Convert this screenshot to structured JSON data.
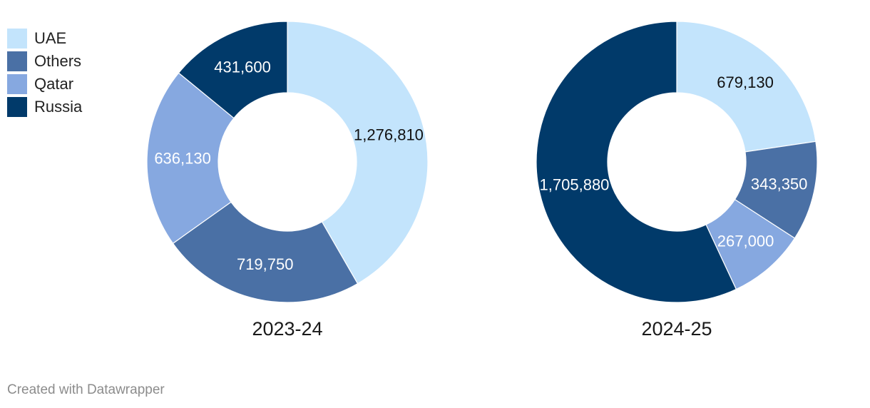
{
  "chart_data": [
    {
      "type": "pie",
      "title": "2023-24",
      "categories": [
        "UAE",
        "Others",
        "Qatar",
        "Russia"
      ],
      "values": [
        1276810,
        719750,
        636130,
        431600
      ],
      "data_labels": [
        "1,276,810",
        "719,750",
        "636,130",
        "431,600"
      ]
    },
    {
      "type": "pie",
      "title": "2024-25",
      "categories": [
        "UAE",
        "Others",
        "Qatar",
        "Russia"
      ],
      "values": [
        679130,
        343350,
        267000,
        1705880
      ],
      "data_labels": [
        "679,130",
        "343,350",
        "267,000",
        "1,705,880"
      ]
    }
  ],
  "legend": [
    {
      "label": "UAE",
      "color": "#c3e4fc"
    },
    {
      "label": "Others",
      "color": "#4a70a5"
    },
    {
      "label": "Qatar",
      "color": "#86a8e0"
    },
    {
      "label": "Russia",
      "color": "#013a6a"
    }
  ],
  "label_colors": {
    "UAE": "#111111",
    "Others": "#ffffff",
    "Qatar": "#ffffff",
    "Russia": "#ffffff"
  },
  "footer": {
    "credit": "Created with Datawrapper"
  }
}
